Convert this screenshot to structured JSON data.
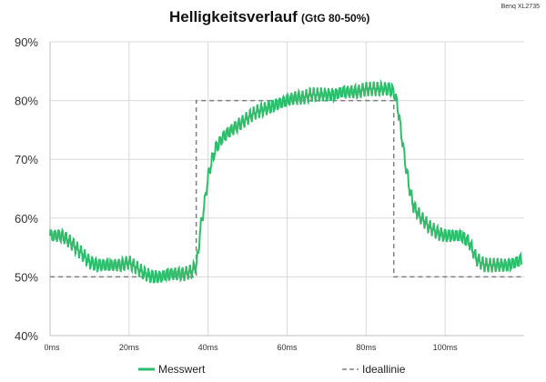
{
  "chart_data": {
    "type": "line",
    "title": "Helligkeitsverlauf",
    "subtitle": "(GtG 80-50%)",
    "corner_label": "Benq XL2735",
    "xlabel": "",
    "ylabel": "",
    "xlim": [
      0,
      120
    ],
    "ylim": [
      40,
      90
    ],
    "x_ticks": [
      0,
      20,
      40,
      60,
      80,
      100
    ],
    "x_tick_labels": [
      "0ms",
      "20ms",
      "40ms",
      "60ms",
      "80ms",
      "100ms"
    ],
    "y_ticks": [
      40,
      50,
      60,
      70,
      80,
      90
    ],
    "y_tick_labels": [
      "40%",
      "50%",
      "60%",
      "70%",
      "80%",
      "90%"
    ],
    "grid": true,
    "legend_position": "bottom",
    "series": [
      {
        "name": "Messwert",
        "color": "#2ebd6b",
        "style": "solid",
        "x": [
          0,
          3,
          5,
          8,
          10,
          12,
          15,
          18,
          20,
          22,
          24,
          26,
          28,
          30,
          32,
          34,
          36,
          37,
          37.5,
          38,
          39,
          40,
          41,
          42,
          44,
          46,
          48,
          50,
          52,
          54,
          56,
          58,
          60,
          62,
          64,
          66,
          68,
          70,
          72,
          74,
          76,
          78,
          80,
          82,
          84,
          86,
          87,
          88,
          89,
          90,
          91,
          92,
          94,
          96,
          98,
          100,
          102,
          104,
          106,
          108,
          110,
          112,
          114,
          116,
          118,
          119.5
        ],
        "y": [
          57,
          57,
          56,
          54,
          52.5,
          52,
          52,
          52,
          52.5,
          51.5,
          50.5,
          50,
          50,
          50.5,
          50.5,
          50.5,
          51,
          52,
          54,
          58,
          62,
          67,
          70,
          72,
          74,
          75,
          76,
          77,
          78,
          78.5,
          79,
          79.5,
          80,
          80.5,
          80.5,
          81,
          81,
          81,
          81,
          81.5,
          81.5,
          81.5,
          82,
          82,
          82,
          82,
          81.5,
          79,
          74,
          69,
          65,
          62,
          60,
          58.5,
          57.5,
          57,
          57,
          57,
          56,
          53,
          52,
          52,
          52,
          52,
          52.5,
          53
        ]
      },
      {
        "name": "Ideallinie",
        "color": "#7f7f7f",
        "style": "dashed",
        "x": [
          0,
          37,
          37,
          87,
          87,
          120
        ],
        "y": [
          50,
          50,
          80,
          80,
          50,
          50
        ]
      }
    ]
  },
  "legend": {
    "items": [
      {
        "label": "Messwert",
        "color": "#2ebd6b",
        "style": "solid"
      },
      {
        "label": "Ideallinie",
        "color": "#7f7f7f",
        "style": "dashed"
      }
    ]
  }
}
